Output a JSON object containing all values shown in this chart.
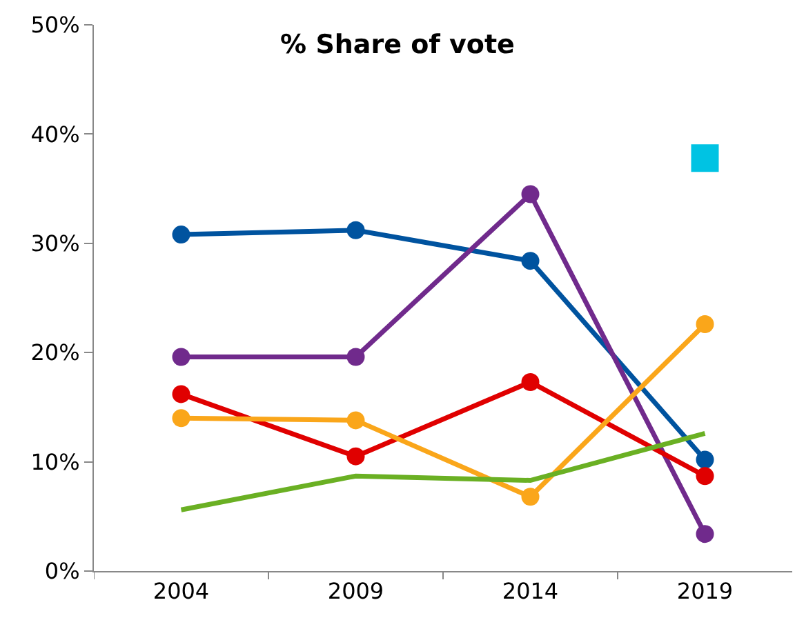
{
  "chart_data": {
    "type": "line",
    "title": "% Share of vote",
    "categories": [
      "2004",
      "2009",
      "2014",
      "2019"
    ],
    "ylim": [
      0,
      50
    ],
    "yticks": [
      {
        "value": 0,
        "label": "0%"
      },
      {
        "value": 10,
        "label": "10%"
      },
      {
        "value": 20,
        "label": "20%"
      },
      {
        "value": 30,
        "label": "30%"
      },
      {
        "value": 40,
        "label": "40%"
      },
      {
        "value": 50,
        "label": "50%"
      }
    ],
    "grid": false,
    "legend": false,
    "series": [
      {
        "color": "#00539f",
        "marker": "circle",
        "values": [
          30.8,
          31.2,
          28.4,
          10.2
        ]
      },
      {
        "color": "#702a8c",
        "marker": "circle",
        "values": [
          19.6,
          19.6,
          34.5,
          3.4
        ]
      },
      {
        "color": "#e00000",
        "marker": "circle",
        "values": [
          16.2,
          10.5,
          17.3,
          8.7
        ]
      },
      {
        "color": "#faa61a",
        "marker": "circle",
        "values": [
          14.0,
          13.8,
          6.8,
          22.6
        ]
      },
      {
        "color": "#6ab023",
        "marker": "none",
        "values": [
          5.6,
          8.7,
          8.3,
          12.6
        ]
      },
      {
        "type": "scatter",
        "color": "#00c3e3",
        "marker": "square",
        "values": [
          null,
          null,
          null,
          37.8
        ]
      }
    ]
  }
}
